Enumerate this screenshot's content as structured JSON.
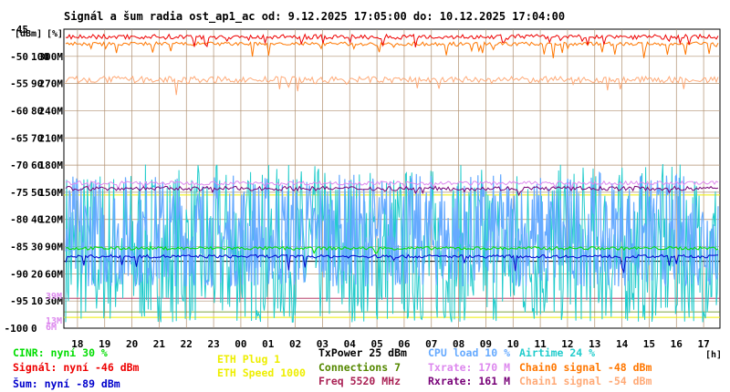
{
  "title": "Signál a šum radia ost_ap1_ac od: 9.12.2025 17:05:00 do: 10.12.2025 17:04:00",
  "axis_unit_dbm": "[dBm]",
  "axis_unit_pct": "[%]",
  "x_unit": "[h]",
  "legend": {
    "cinr": "CINR: nyní 30 %",
    "signal": "Signál: nyní -46 dBm",
    "noise": "Šum: nyní -89 dBm",
    "eth_plug": "ETH Plug 1",
    "eth_speed": "ETH Speed 1000",
    "txpower": "TxPower 25 dBm",
    "connections": "Connections 7",
    "freq": "Freq 5520 MHz",
    "cpu": "CPU load 10 %",
    "txrate": "Txrate: 170 M",
    "rxrate": "Rxrate: 161 M",
    "airtime": "Airtime 24 %",
    "chain0": "Chain0 signal -48 dBm",
    "chain1": "Chain1 signal -54 dBm"
  },
  "colors": {
    "cinr": "#00dd00",
    "signal": "#ee0000",
    "noise": "#0000cc",
    "eth": "#eeee00",
    "txpower": "#000000",
    "connections": "#558800",
    "freq": "#aa2255",
    "cpu": "#66aaff",
    "txrate": "#dd88ee",
    "rxrate": "#770077",
    "airtime": "#22cccc",
    "chain0": "#ff7700",
    "chain1": "#ffaa77"
  },
  "chart_data": {
    "type": "line",
    "title": "Signál a šum radia ost_ap1_ac od: 9.12.2025 17:05:00 do: 10.12.2025 17:04:00",
    "x_ticks": [
      "18",
      "19",
      "20",
      "21",
      "22",
      "23",
      "00",
      "01",
      "02",
      "03",
      "04",
      "05",
      "06",
      "07",
      "08",
      "09",
      "10",
      "11",
      "12",
      "13",
      "14",
      "15",
      "16",
      "17"
    ],
    "x_unit": "[h]",
    "y_ticks_dbm": [
      "-45",
      "-50",
      "-55",
      "-60",
      "-65",
      "-70",
      "-75",
      "-80",
      "-85",
      "-90",
      "-95",
      "-100"
    ],
    "y_ticks_pct": [
      "",
      "100",
      "90",
      "80",
      "70",
      "60",
      "50",
      "40",
      "30",
      "20",
      "10",
      "0"
    ],
    "y_ticks_rate": [
      "",
      "300M",
      "270M",
      "240M",
      "210M",
      "180M",
      "150M",
      "120M",
      "90M",
      "60M",
      "30M",
      ""
    ],
    "inner_labels": [
      {
        "text": "39M",
        "at_dbm": -94
      },
      {
        "text": "13M",
        "at_dbm": -98.5
      },
      {
        "text": "6M",
        "at_dbm": -99.7
      }
    ],
    "ylim_dbm": [
      -100,
      -45
    ],
    "grid": true,
    "series": [
      {
        "key": "signal",
        "approx_level_dbm": -46.5,
        "noise_span": 1.6
      },
      {
        "key": "chain0",
        "approx_level_dbm": -48,
        "noise_span": 1.4
      },
      {
        "key": "chain1",
        "approx_level_dbm": -54,
        "noise_span": 1.6
      },
      {
        "key": "txrate",
        "approx_level_dbm": -73.5,
        "noise_span": 0.6
      },
      {
        "key": "rxrate",
        "approx_level_dbm": -74.5,
        "noise_span": 0.8
      },
      {
        "key": "cinr",
        "approx_level_pct": 30
      },
      {
        "key": "noise",
        "approx_level_dbm": -87.5
      },
      {
        "key": "eth_speed",
        "approx_level_dbm": -75.5
      },
      {
        "key": "airtime",
        "range_pct": [
          2,
          70
        ]
      },
      {
        "key": "cpu",
        "range_pct": [
          10,
          60
        ]
      }
    ]
  }
}
